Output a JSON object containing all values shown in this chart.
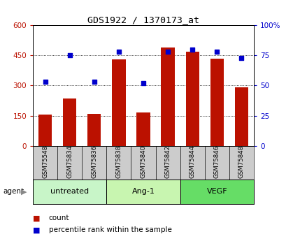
{
  "title": "GDS1922 / 1370173_at",
  "samples": [
    "GSM75548",
    "GSM75834",
    "GSM75836",
    "GSM75838",
    "GSM75840",
    "GSM75842",
    "GSM75844",
    "GSM75846",
    "GSM75848"
  ],
  "counts": [
    155,
    235,
    160,
    430,
    165,
    490,
    470,
    435,
    290
  ],
  "percentiles": [
    53,
    75,
    53,
    78,
    52,
    78,
    80,
    78,
    73
  ],
  "groups": [
    {
      "label": "untreated",
      "indices": [
        0,
        1,
        2
      ],
      "color": "#c8f5c8"
    },
    {
      "label": "Ang-1",
      "indices": [
        3,
        4,
        5
      ],
      "color": "#c8f5b0"
    },
    {
      "label": "VEGF",
      "indices": [
        6,
        7,
        8
      ],
      "color": "#66dd66"
    }
  ],
  "bar_color": "#bb1100",
  "dot_color": "#0000cc",
  "ylim_left": [
    0,
    600
  ],
  "ylim_right": [
    0,
    100
  ],
  "yticks_left": [
    0,
    150,
    300,
    450,
    600
  ],
  "ytick_labels_left": [
    "0",
    "150",
    "300",
    "450",
    "600"
  ],
  "yticks_right": [
    0,
    25,
    50,
    75,
    100
  ],
  "ytick_labels_right": [
    "0",
    "25",
    "50",
    "75",
    "100%"
  ],
  "grid_values": [
    150,
    300,
    450
  ],
  "legend_count_label": "count",
  "legend_pct_label": "percentile rank within the sample",
  "agent_label": "agent",
  "bar_width": 0.55,
  "tick_area_bg": "#cccccc",
  "title_fontsize": 9.5
}
